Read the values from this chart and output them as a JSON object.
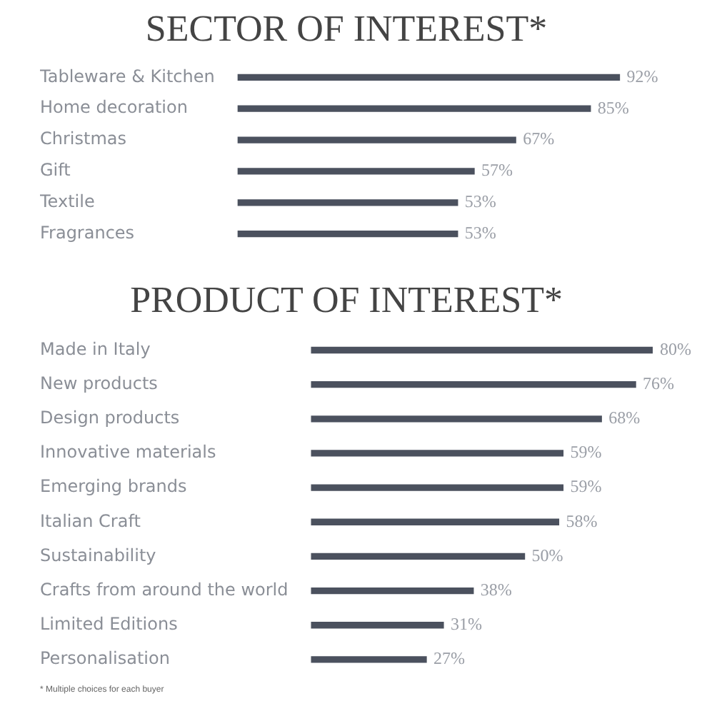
{
  "chart_data": [
    {
      "type": "bar",
      "orientation": "horizontal",
      "title": "SECTOR OF INTEREST*",
      "categories": [
        "Tableware & Kitchen",
        "Home decoration",
        "Christmas",
        "Gift",
        "Textile",
        "Fragrances"
      ],
      "values": [
        92,
        85,
        67,
        57,
        53,
        53
      ],
      "value_labels": [
        "92%",
        "85%",
        "67%",
        "57%",
        "53%",
        "53%"
      ],
      "color": "#4b515e",
      "grid": false,
      "legend": false,
      "tick_labels": "y"
    },
    {
      "type": "bar",
      "orientation": "horizontal",
      "title": "PRODUCT OF INTEREST*",
      "categories": [
        "Made in Italy",
        "New products",
        "Design products",
        "Innovative materials",
        "Emerging brands",
        "Italian Craft",
        "Sustainability",
        "Crafts from around the world",
        "Limited Editions",
        "Personalisation"
      ],
      "values": [
        80,
        76,
        68,
        59,
        59,
        58,
        50,
        38,
        31,
        27
      ],
      "value_labels": [
        "80%",
        "76%",
        "68%",
        "59%",
        "59%",
        "58%",
        "50%",
        "38%",
        "31%",
        "27%"
      ],
      "color": "#4b515e",
      "grid": false,
      "legend": false,
      "tick_labels": "y",
      "annotations": [
        "* Multiple choices for each buyer"
      ]
    }
  ]
}
